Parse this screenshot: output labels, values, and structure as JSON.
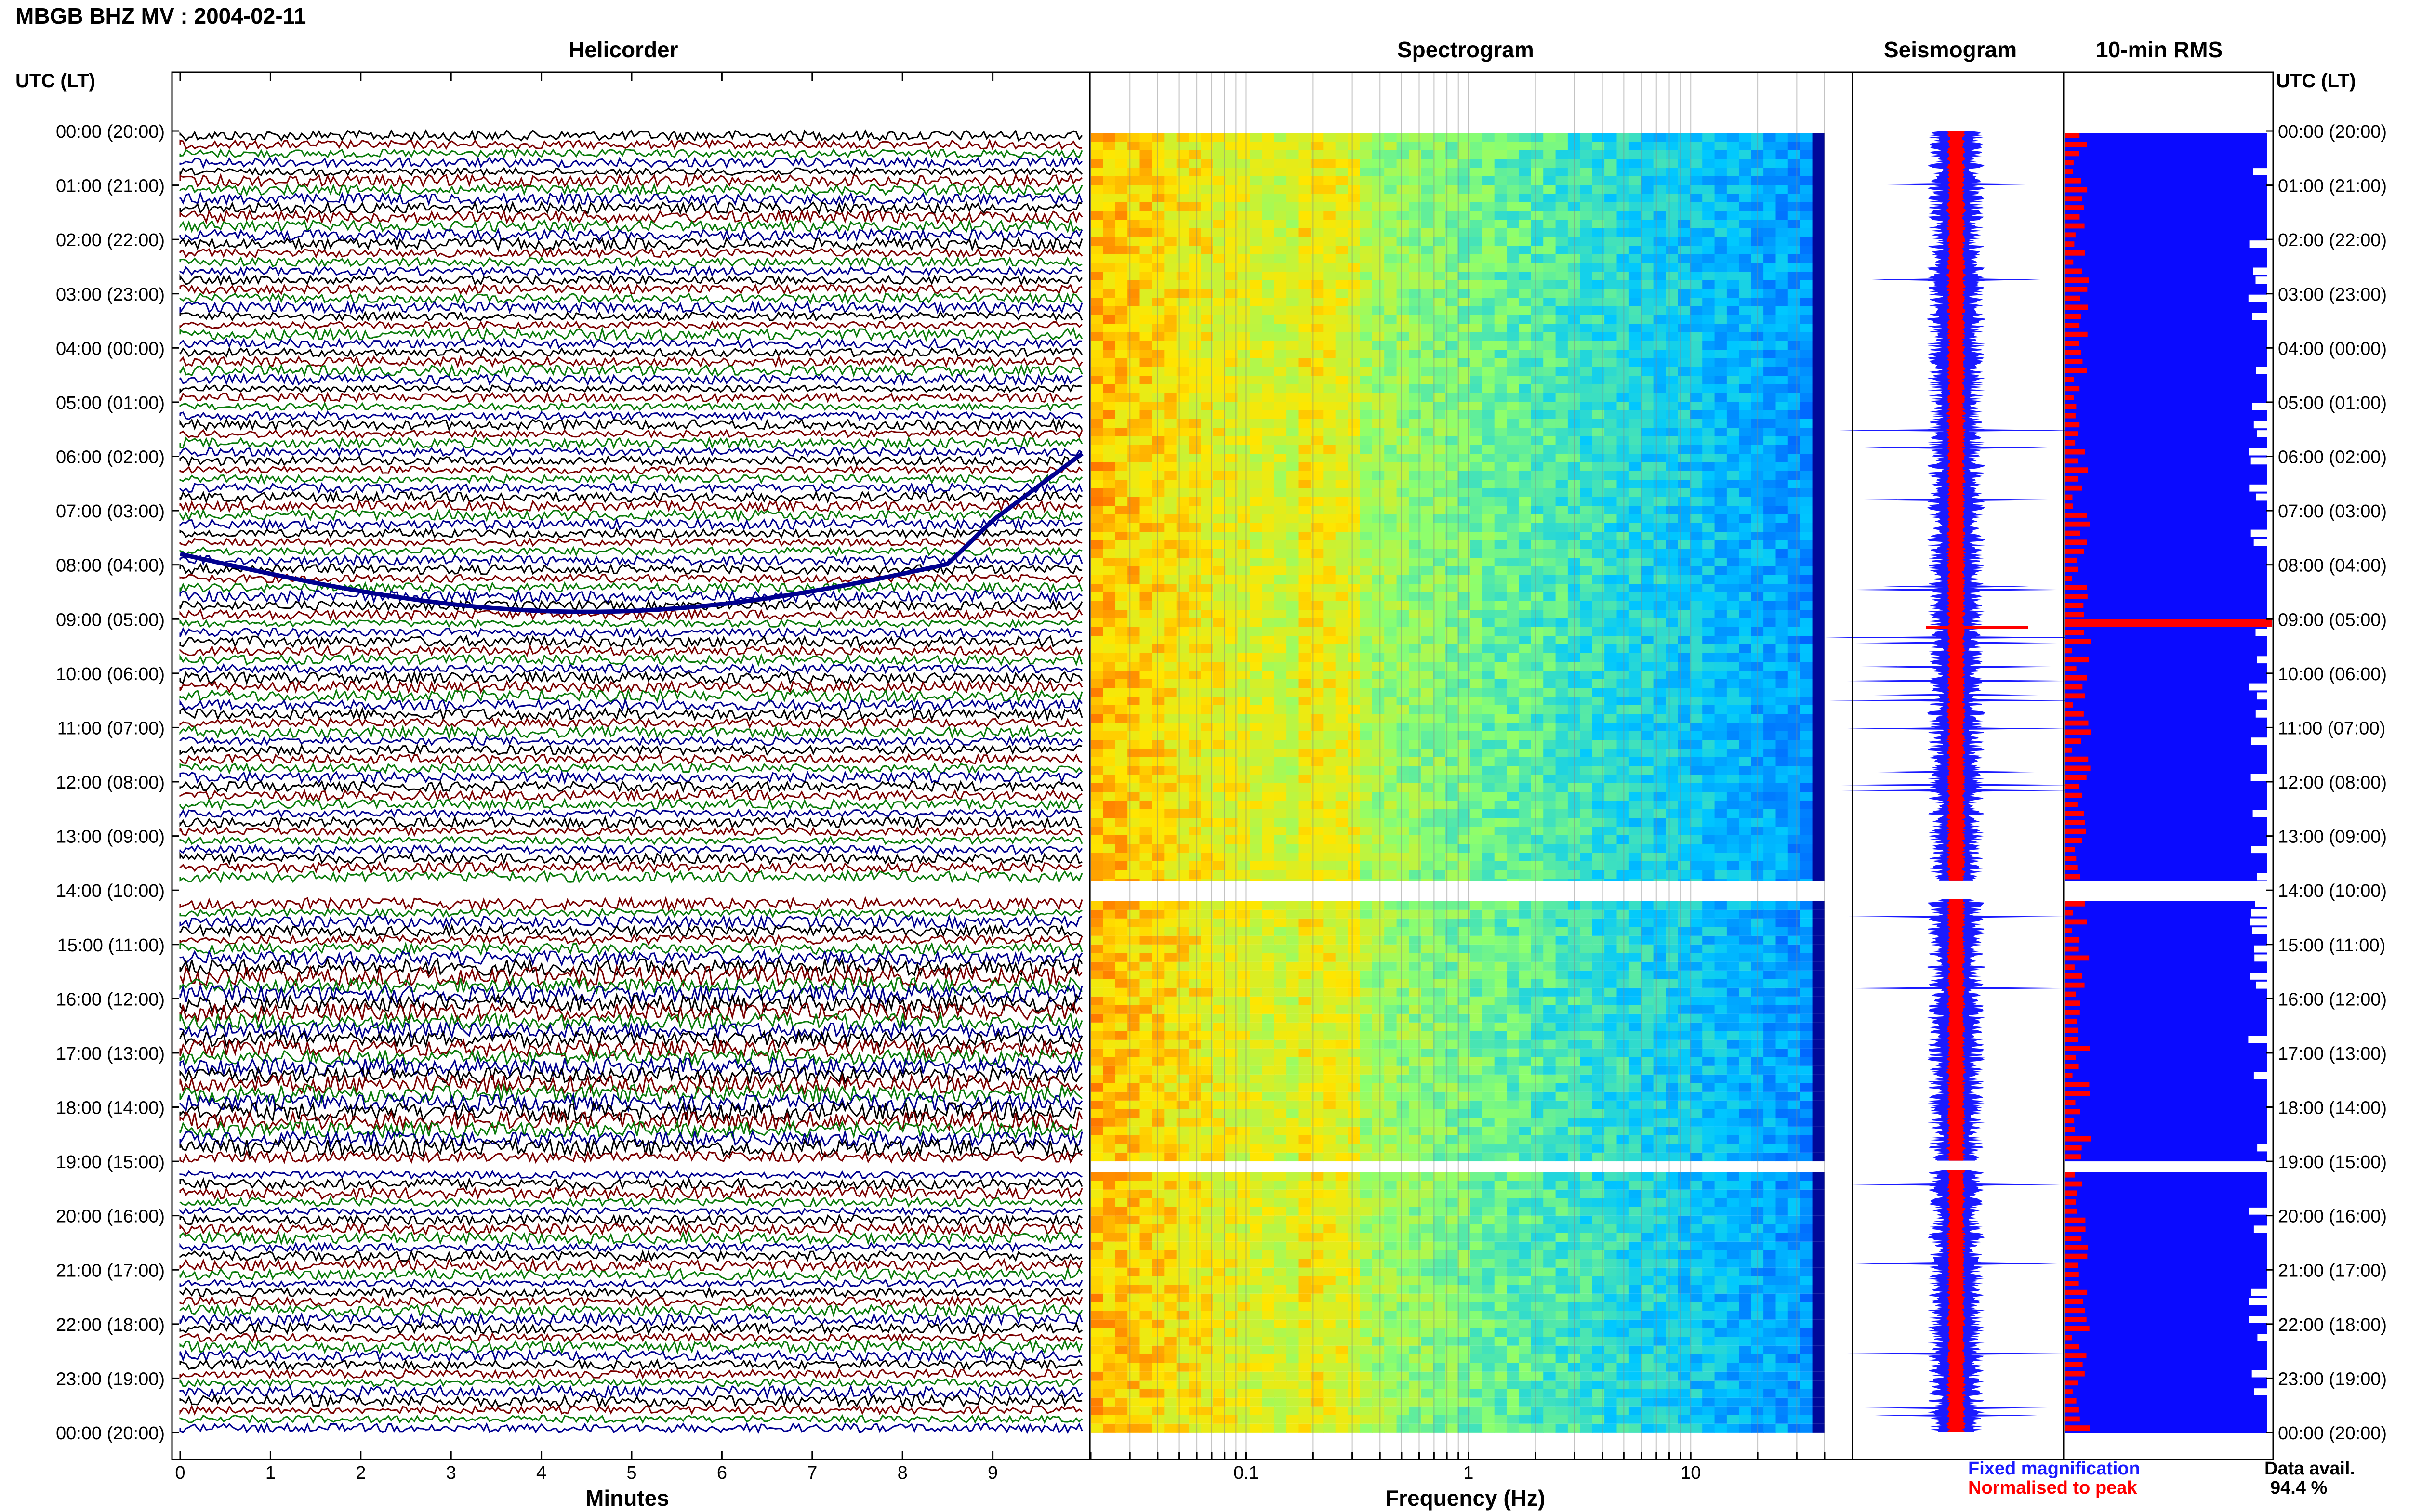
{
  "header": {
    "station_title": "MBGB BHZ MV : 2004-02-11",
    "axis_title": "UTC (LT)",
    "axis_title_right": "UTC (LT)"
  },
  "panels": {
    "helicorder": "Helicorder",
    "spectrogram": "Spectrogram",
    "seismogram": "Seismogram",
    "rms": "10-min RMS"
  },
  "legend": {
    "fixed": "Fixed magnification",
    "normalised": "Normalised to peak",
    "data_avail_label": "Data avail.",
    "data_avail_value": "94.4 %"
  },
  "colors": {
    "trace_black": "#000000",
    "trace_darkred": "#7a0000",
    "trace_green": "#0a7a0a",
    "trace_blue": "#00008f",
    "fixed": "#1a1aff",
    "normalised": "#ff0000",
    "rms_fill": "#0a0aff"
  },
  "chart_data": [
    {
      "type": "line",
      "title": "Helicorder",
      "xlabel": "Minutes",
      "x_ticks": [
        "0",
        "1",
        "2",
        "3",
        "4",
        "5",
        "6",
        "7",
        "8",
        "9"
      ],
      "xlim": [
        0,
        10
      ],
      "rows": 144,
      "gaps_utc": [
        [
          "13:50",
          "14:10"
        ],
        [
          "19:00",
          "19:10"
        ]
      ],
      "row_colors": [
        "black",
        "darkred",
        "green",
        "blue"
      ]
    },
    {
      "type": "heatmap",
      "title": "Spectrogram",
      "xlabel": "Frequency (Hz)",
      "x_scale": "log",
      "x_ticks": [
        "0.1",
        "1",
        "10"
      ],
      "xlim": [
        0.02,
        40
      ]
    },
    {
      "type": "line",
      "title": "Seismogram",
      "series": [
        {
          "name": "Fixed magnification"
        },
        {
          "name": "Normalised to peak"
        }
      ]
    },
    {
      "type": "bar",
      "title": "10-min RMS",
      "y_ticks": [
        "00:00 (20:00)",
        "01:00 (21:00)",
        "02:00 (22:00)",
        "03:00 (23:00)",
        "04:00 (00:00)",
        "05:00 (01:00)",
        "06:00 (02:00)",
        "07:00 (03:00)",
        "08:00 (04:00)",
        "09:00 (05:00)",
        "10:00 (06:00)",
        "11:00 (07:00)",
        "12:00 (08:00)",
        "13:00 (09:00)",
        "14:00 (10:00)",
        "15:00 (11:00)",
        "16:00 (12:00)",
        "17:00 (13:00)",
        "18:00 (14:00)",
        "19:00 (15:00)",
        "20:00 (16:00)",
        "21:00 (17:00)",
        "22:00 (18:00)",
        "23:00 (19:00)",
        "00:00 (20:00)"
      ],
      "data_availability_percent": 94.4
    }
  ]
}
